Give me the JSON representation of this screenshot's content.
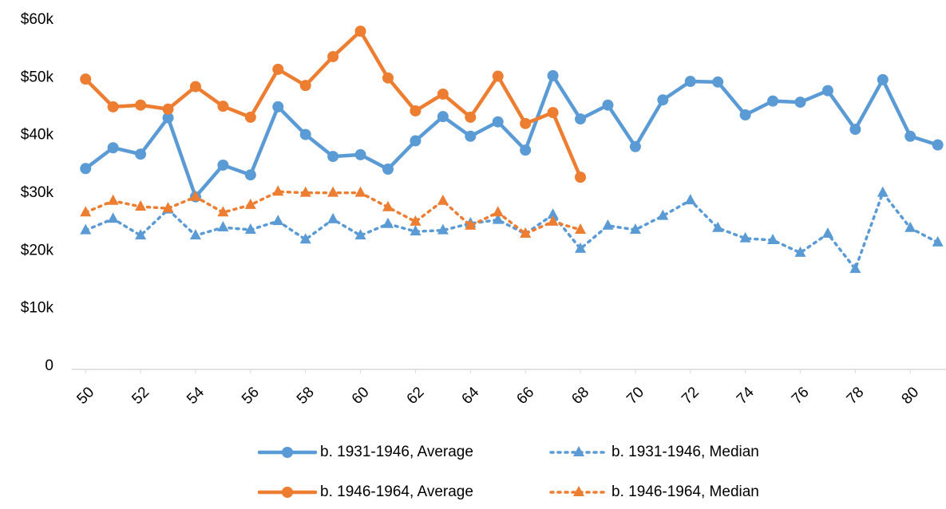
{
  "chart_data": {
    "type": "line",
    "x": [
      50,
      51,
      52,
      53,
      54,
      55,
      56,
      57,
      58,
      59,
      60,
      61,
      62,
      63,
      64,
      65,
      66,
      67,
      68,
      69,
      70,
      71,
      72,
      73,
      74,
      75,
      76,
      77,
      78,
      79,
      80,
      81
    ],
    "xlim": [
      49.5,
      81.3
    ],
    "xticks": [
      50,
      52,
      54,
      56,
      58,
      60,
      62,
      64,
      66,
      68,
      70,
      72,
      74,
      76,
      78,
      80
    ],
    "ylim": [
      0,
      60000
    ],
    "yticks": [
      0,
      {
        "value": 10000,
        "label": "$10k"
      },
      {
        "value": 20000,
        "label": "$20k"
      },
      {
        "value": 30000,
        "label": "$30k"
      },
      {
        "value": 40000,
        "label": "$40k"
      },
      {
        "value": 50000,
        "label": "$50k"
      },
      {
        "value": 60000,
        "label": "$60k"
      }
    ],
    "grid": false,
    "legend": "bottom",
    "series": [
      {
        "name": "b. 1931-1946, Average",
        "color": "#5b9bd5",
        "marker": "circle",
        "line_style": "solid",
        "values": [
          34800,
          38400,
          37300,
          43600,
          29900,
          35400,
          33700,
          45500,
          40700,
          36900,
          37200,
          34700,
          39600,
          43800,
          40400,
          42900,
          38000,
          50900,
          43400,
          45800,
          38600,
          46700,
          49900,
          49800,
          44100,
          46500,
          46300,
          48300,
          41600,
          50200,
          40400,
          38900
        ]
      },
      {
        "name": "b. 1931-1946, Median",
        "color": "#5b9bd5",
        "marker": "triangle",
        "line_style": "dotted",
        "values": [
          24100,
          26100,
          23200,
          27700,
          23200,
          24600,
          24200,
          25700,
          22500,
          26000,
          23200,
          25200,
          23900,
          24100,
          25300,
          25900,
          23500,
          26800,
          20900,
          24900,
          24200,
          26600,
          29300,
          24500,
          22700,
          22400,
          20200,
          23500,
          17400,
          30600,
          24500,
          22000
        ]
      },
      {
        "name": "b. 1946-1964, Average",
        "color": "#ed7d31",
        "marker": "circle",
        "line_style": "solid",
        "values": [
          50300,
          45500,
          45800,
          45100,
          49000,
          45600,
          43700,
          52000,
          49200,
          54200,
          58600,
          50500,
          44800,
          47700,
          43700,
          50800,
          42600,
          44500,
          33300,
          null,
          null,
          null,
          null,
          null,
          null,
          null,
          null,
          null,
          null,
          null,
          null,
          null
        ]
      },
      {
        "name": "b. 1946-1964, Median",
        "color": "#ed7d31",
        "marker": "triangle",
        "line_style": "dotted",
        "values": [
          27200,
          29200,
          28200,
          27900,
          29900,
          27200,
          28500,
          30800,
          30600,
          30600,
          30600,
          28100,
          25600,
          29200,
          24900,
          27200,
          23500,
          25600,
          24200,
          null,
          null,
          null,
          null,
          null,
          null,
          null,
          null,
          null,
          null,
          null,
          null,
          null
        ]
      }
    ]
  }
}
